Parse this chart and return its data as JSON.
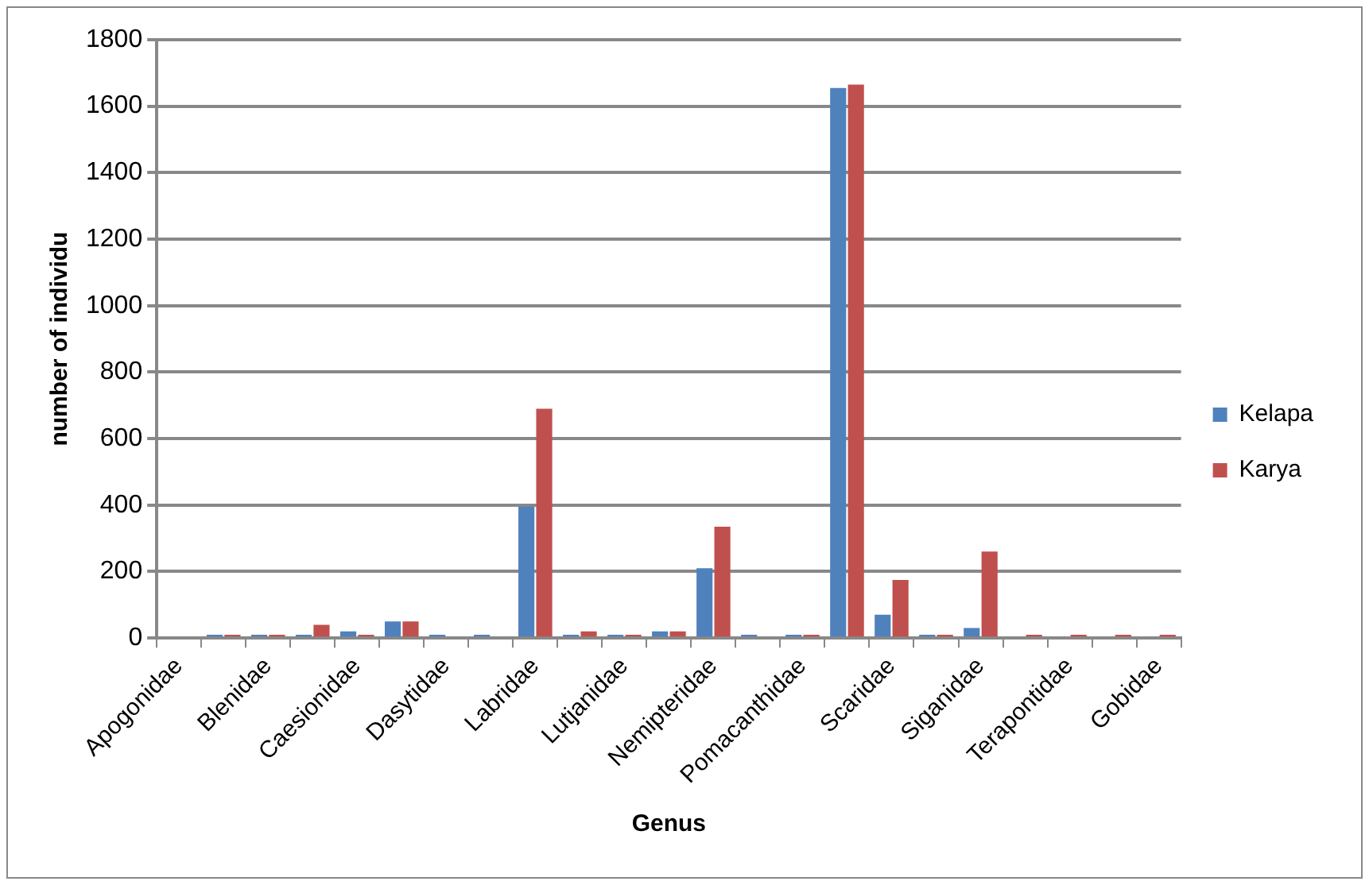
{
  "chart_data": {
    "type": "bar",
    "xlabel": "Genus",
    "ylabel": "number of individu",
    "categories": [
      "Apogonidae",
      null,
      "Blenidae",
      null,
      "Caesionidae",
      null,
      "Dasytidae",
      null,
      "Labridae",
      null,
      "Lutjanidae",
      null,
      "Nemipteridae",
      null,
      "Pomacanthidae",
      null,
      "Scaridae",
      null,
      "Siganidae",
      null,
      "Terapontidae",
      null,
      "Gobidae"
    ],
    "series": [
      {
        "name": "Kelapa",
        "color": "#4f81bd",
        "values": [
          null,
          10,
          10,
          10,
          20,
          50,
          10,
          10,
          395,
          10,
          10,
          20,
          210,
          10,
          10,
          1655,
          70,
          10,
          30,
          null,
          null,
          null,
          null
        ]
      },
      {
        "name": "Karya",
        "color": "#c0504d",
        "values": [
          null,
          10,
          10,
          40,
          10,
          50,
          null,
          null,
          690,
          20,
          10,
          20,
          335,
          null,
          10,
          1665,
          175,
          10,
          260,
          10,
          10,
          10,
          10
        ]
      }
    ],
    "ylim": [
      0,
      1800
    ],
    "yticks": [
      0,
      200,
      400,
      600,
      800,
      1000,
      1200,
      1400,
      1600,
      1800
    ],
    "grid": "y",
    "legend": "right"
  }
}
